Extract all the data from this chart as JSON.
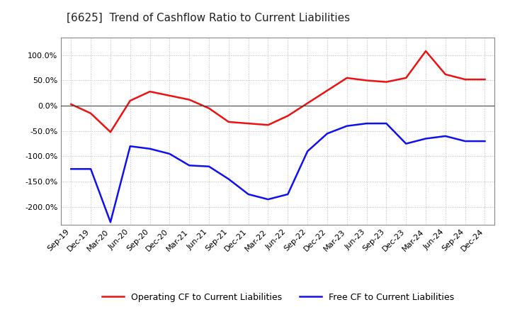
{
  "title": "[6625]  Trend of Cashflow Ratio to Current Liabilities",
  "x_labels": [
    "Sep-19",
    "Dec-19",
    "Mar-20",
    "Jun-20",
    "Sep-20",
    "Dec-20",
    "Mar-21",
    "Jun-21",
    "Sep-21",
    "Dec-21",
    "Mar-22",
    "Jun-22",
    "Sep-22",
    "Dec-22",
    "Mar-23",
    "Jun-23",
    "Sep-23",
    "Dec-23",
    "Mar-24",
    "Jun-24",
    "Sep-24",
    "Dec-24"
  ],
  "operating_cf": [
    3.0,
    -15.0,
    -52.0,
    10.0,
    28.0,
    20.0,
    12.0,
    -5.0,
    -32.0,
    -35.0,
    -38.0,
    -20.0,
    5.0,
    30.0,
    55.0,
    50.0,
    47.0,
    55.0,
    108.0,
    62.0,
    52.0,
    52.0
  ],
  "free_cf": [
    -125.0,
    -125.0,
    -230.0,
    -80.0,
    -85.0,
    -95.0,
    -118.0,
    -120.0,
    -145.0,
    -175.0,
    -185.0,
    -175.0,
    -90.0,
    -55.0,
    -40.0,
    -35.0,
    -35.0,
    -75.0,
    -65.0,
    -60.0,
    -70.0,
    -70.0
  ],
  "operating_color": "#EE1111",
  "free_color": "#1111EE",
  "background_color": "#FFFFFF",
  "plot_bg_color": "#FFFFFF",
  "grid_color": "#BBBBBB",
  "ylim": [
    -235,
    135
  ],
  "yticks": [
    -200.0,
    -150.0,
    -100.0,
    -50.0,
    0.0,
    50.0,
    100.0
  ],
  "legend_op": "Operating CF to Current Liabilities",
  "legend_free": "Free CF to Current Liabilities",
  "title_fontsize": 11,
  "tick_fontsize": 8,
  "legend_fontsize": 9
}
